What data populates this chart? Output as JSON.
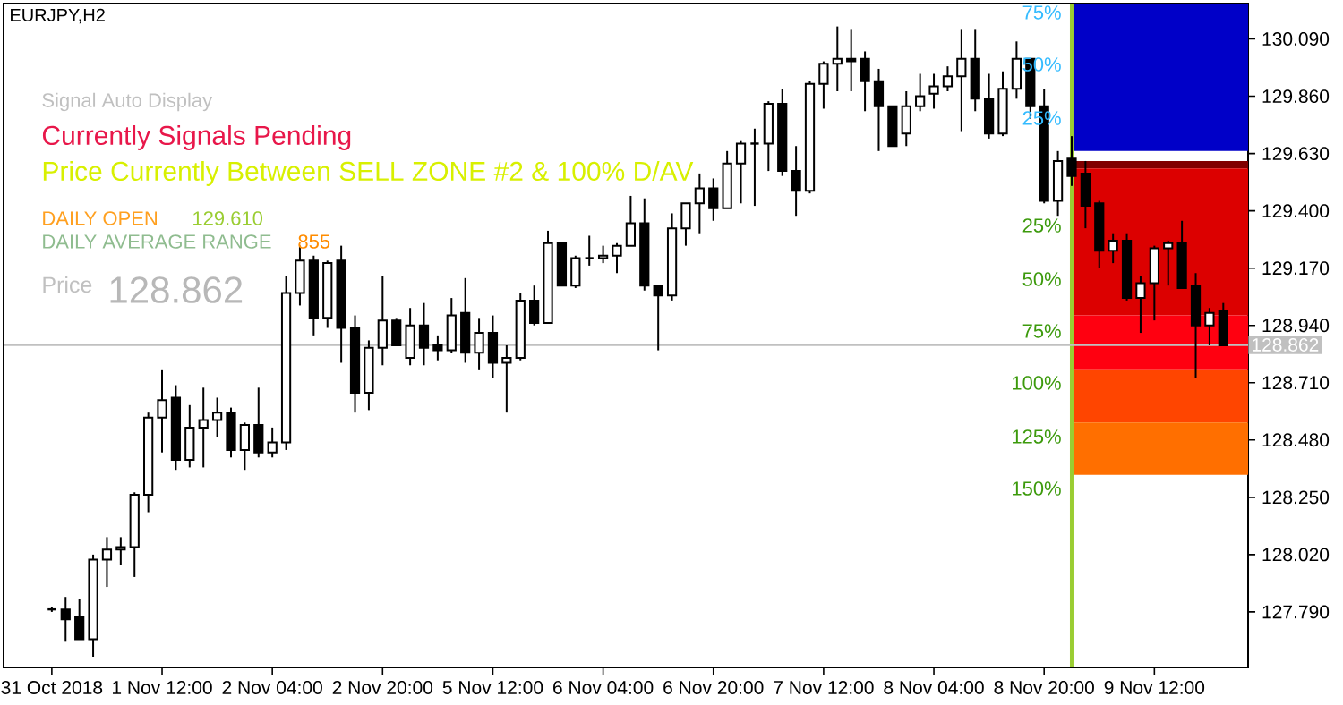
{
  "chart_data": {
    "type": "candlestick",
    "title": "EURJPY,H2",
    "categories": [
      "31 Oct 2018",
      null,
      null,
      null,
      null,
      null,
      null,
      null,
      "1 Nov 12:00",
      null,
      null,
      null,
      null,
      null,
      null,
      null,
      "2 Nov 04:00",
      null,
      null,
      null,
      null,
      null,
      null,
      null,
      "2 Nov 20:00",
      null,
      null,
      null,
      null,
      null,
      null,
      null,
      "5 Nov 12:00",
      null,
      null,
      null,
      null,
      null,
      null,
      null,
      "6 Nov 04:00",
      null,
      null,
      null,
      null,
      null,
      null,
      null,
      "6 Nov 20:00",
      null,
      null,
      null,
      null,
      null,
      null,
      null,
      "7 Nov 12:00",
      null,
      null,
      null,
      null,
      null,
      null,
      null,
      "8 Nov 04:00",
      null,
      null,
      null,
      null,
      null,
      null,
      null,
      "8 Nov 20:00",
      null,
      null,
      null,
      null,
      null,
      null,
      null,
      "9 Nov 12:00",
      null,
      null,
      null,
      null,
      null
    ],
    "ohlc": [
      [
        127.8,
        127.81,
        127.79,
        127.8
      ],
      [
        127.8,
        127.85,
        127.67,
        127.76
      ],
      [
        127.77,
        127.84,
        127.68,
        127.68
      ],
      [
        127.68,
        128.02,
        127.61,
        128.0
      ],
      [
        128.0,
        128.09,
        127.89,
        128.04
      ],
      [
        128.04,
        128.09,
        127.98,
        128.05
      ],
      [
        128.05,
        128.27,
        127.93,
        128.26
      ],
      [
        128.26,
        128.59,
        128.19,
        128.57
      ],
      [
        128.57,
        128.76,
        128.43,
        128.64
      ],
      [
        128.65,
        128.7,
        128.36,
        128.4
      ],
      [
        128.4,
        128.62,
        128.37,
        128.53
      ],
      [
        128.53,
        128.69,
        128.37,
        128.56
      ],
      [
        128.56,
        128.65,
        128.49,
        128.59
      ],
      [
        128.59,
        128.61,
        128.41,
        128.44
      ],
      [
        128.44,
        128.55,
        128.36,
        128.54
      ],
      [
        128.54,
        128.69,
        128.41,
        128.43
      ],
      [
        128.43,
        128.53,
        128.41,
        128.47
      ],
      [
        128.47,
        129.14,
        128.44,
        129.07
      ],
      [
        129.07,
        129.26,
        129.02,
        129.2
      ],
      [
        129.2,
        129.22,
        128.9,
        128.97
      ],
      [
        128.97,
        129.2,
        128.93,
        129.19
      ],
      [
        129.2,
        129.26,
        128.79,
        128.93
      ],
      [
        128.93,
        128.98,
        128.59,
        128.67
      ],
      [
        128.67,
        128.88,
        128.6,
        128.85
      ],
      [
        128.85,
        129.14,
        128.78,
        128.96
      ],
      [
        128.96,
        128.97,
        128.86,
        128.86
      ],
      [
        128.81,
        129.01,
        128.78,
        128.94
      ],
      [
        128.94,
        129.03,
        128.78,
        128.85
      ],
      [
        128.86,
        128.9,
        128.8,
        128.84
      ],
      [
        128.84,
        129.05,
        128.83,
        128.98
      ],
      [
        128.99,
        129.13,
        128.79,
        128.83
      ],
      [
        128.83,
        128.97,
        128.76,
        128.91
      ],
      [
        128.91,
        128.98,
        128.73,
        128.79
      ],
      [
        128.79,
        128.86,
        128.59,
        128.81
      ],
      [
        128.81,
        129.07,
        128.8,
        129.04
      ],
      [
        129.04,
        129.1,
        128.94,
        128.95
      ],
      [
        128.95,
        129.32,
        128.95,
        129.27
      ],
      [
        129.27,
        129.27,
        129.1,
        129.1
      ],
      [
        129.1,
        129.22,
        129.09,
        129.21
      ],
      [
        129.21,
        129.3,
        129.18,
        129.21
      ],
      [
        129.21,
        129.26,
        129.19,
        129.22
      ],
      [
        129.22,
        129.27,
        129.15,
        129.26
      ],
      [
        129.26,
        129.46,
        129.26,
        129.35
      ],
      [
        129.35,
        129.45,
        129.08,
        129.1
      ],
      [
        129.1,
        129.1,
        128.84,
        129.06
      ],
      [
        129.06,
        129.39,
        129.04,
        129.33
      ],
      [
        129.33,
        129.43,
        129.26,
        129.43
      ],
      [
        129.43,
        129.55,
        129.31,
        129.49
      ],
      [
        129.49,
        129.53,
        129.36,
        129.41
      ],
      [
        129.41,
        129.64,
        129.41,
        129.59
      ],
      [
        129.59,
        129.68,
        129.43,
        129.67
      ],
      [
        129.67,
        129.73,
        129.42,
        129.67
      ],
      [
        129.67,
        129.84,
        129.56,
        129.83
      ],
      [
        129.83,
        129.89,
        129.54,
        129.56
      ],
      [
        129.56,
        129.66,
        129.38,
        129.48
      ],
      [
        129.48,
        129.92,
        129.47,
        129.91
      ],
      [
        129.91,
        130.0,
        129.81,
        129.99
      ],
      [
        129.99,
        130.14,
        129.88,
        130.01
      ],
      [
        130.01,
        130.13,
        129.88,
        130.0
      ],
      [
        130.01,
        130.04,
        129.8,
        129.92
      ],
      [
        129.92,
        129.97,
        129.64,
        129.82
      ],
      [
        129.82,
        129.82,
        129.66,
        129.66
      ],
      [
        129.71,
        129.88,
        129.66,
        129.82
      ],
      [
        129.82,
        129.95,
        129.8,
        129.86
      ],
      [
        129.87,
        129.95,
        129.81,
        129.9
      ],
      [
        129.9,
        129.98,
        129.88,
        129.94
      ],
      [
        129.94,
        130.13,
        129.72,
        130.01
      ],
      [
        130.01,
        130.13,
        129.8,
        129.85
      ],
      [
        129.85,
        129.95,
        129.69,
        129.71
      ],
      [
        129.71,
        129.96,
        129.7,
        129.89
      ],
      [
        129.89,
        130.08,
        129.85,
        130.01
      ],
      [
        130.01,
        130.01,
        129.77,
        129.82
      ],
      [
        129.82,
        129.89,
        129.43,
        129.44
      ],
      [
        129.44,
        129.64,
        129.38,
        129.6
      ],
      [
        129.61,
        129.7,
        129.5,
        129.54
      ],
      [
        129.55,
        129.6,
        129.33,
        129.42
      ],
      [
        129.43,
        129.44,
        129.17,
        129.24
      ],
      [
        129.24,
        129.31,
        129.19,
        129.28
      ],
      [
        129.28,
        129.31,
        129.04,
        129.05
      ],
      [
        129.05,
        129.14,
        128.91,
        129.11
      ],
      [
        129.11,
        129.26,
        128.96,
        129.25
      ],
      [
        129.25,
        129.28,
        129.1,
        129.27
      ],
      [
        129.27,
        129.36,
        129.09,
        129.09
      ],
      [
        129.1,
        129.15,
        128.73,
        128.94
      ],
      [
        128.94,
        129.01,
        128.86,
        128.99
      ],
      [
        129.0,
        129.03,
        128.86,
        128.86
      ]
    ],
    "ylim": [
      127.567,
      130.232
    ],
    "yticks": [
      {
        "value": 127.79,
        "label": "127.790"
      },
      {
        "value": 128.02,
        "label": "128.020"
      },
      {
        "value": 128.25,
        "label": "128.250"
      },
      {
        "value": 128.48,
        "label": "128.480"
      },
      {
        "value": 128.71,
        "label": "128.710"
      },
      {
        "value": 128.94,
        "label": "128.940"
      },
      {
        "value": 129.17,
        "label": "129.170"
      },
      {
        "value": 129.4,
        "label": "129.400"
      },
      {
        "value": 129.63,
        "label": "129.630"
      },
      {
        "value": 129.86,
        "label": "129.860"
      },
      {
        "value": 130.09,
        "label": "130.090"
      }
    ],
    "bands": [
      {
        "axis": "y",
        "from": 129.64,
        "to": 130.232,
        "color": "#0000c8"
      },
      {
        "axis": "y",
        "from": 129.57,
        "to": 129.6,
        "color": "#800000"
      },
      {
        "axis": "y",
        "from": 128.98,
        "to": 129.57,
        "color": "#dc0000"
      },
      {
        "axis": "y",
        "from": 128.76,
        "to": 128.98,
        "color": "#ff0010"
      },
      {
        "axis": "y",
        "from": 128.55,
        "to": 128.76,
        "color": "#ff4500"
      },
      {
        "axis": "y",
        "from": 128.34,
        "to": 128.55,
        "color": "#ff6f00"
      }
    ],
    "ref_lines": [
      {
        "axis": "y",
        "value": 128.862,
        "label": "128.862",
        "color": "#c0c0c0"
      }
    ],
    "annotations": [
      "Signal Auto Display",
      "Currently Signals Pending",
      "Price Currently Between SELL ZONE #2 & 100% D/AV",
      "DAILY OPEN",
      "129.610",
      "DAILY AVERAGE RANGE",
      "855",
      "Price",
      "128.862",
      "75%",
      "50%",
      "25%",
      "25%",
      "50%",
      "75%",
      "100%",
      "125%",
      "150%"
    ]
  }
}
